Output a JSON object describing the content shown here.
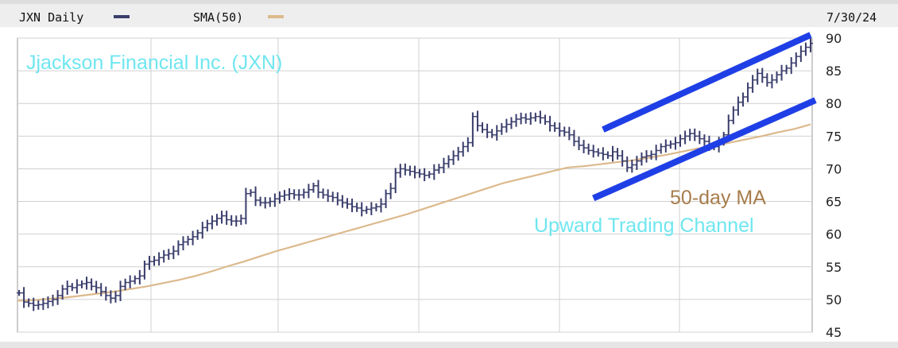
{
  "header": {
    "symbol_label": "JXN Daily",
    "sma_label": "SMA(50)",
    "date": "7/30/24"
  },
  "colors": {
    "price": "#3a3d6b",
    "sma": "#dcb98c",
    "channel": "#1f3fe6",
    "title_text": "#6fe6f0",
    "ma_text": "#a77d4c",
    "grid": "#d0d0d0"
  },
  "annotations": {
    "title": "Jjackson Financial Inc. (JXN)",
    "ma_label": "50-day MA",
    "channel_label": "Upward Trading Channel"
  },
  "chart_data": {
    "type": "line",
    "ylim": [
      45,
      90
    ],
    "yticks": [
      45,
      50,
      55,
      60,
      65,
      70,
      75,
      80,
      85,
      90
    ],
    "grid": true,
    "series": [
      {
        "name": "JXN Daily",
        "style": "ohlc-bars",
        "values": [
          51.0,
          49.6,
          49.4,
          49.1,
          49.2,
          49.4,
          49.7,
          50.0,
          50.6,
          51.6,
          52.0,
          51.8,
          52.2,
          52.4,
          52.6,
          52.0,
          51.8,
          51.2,
          50.6,
          50.2,
          50.6,
          52.0,
          52.6,
          52.8,
          53.2,
          53.6,
          55.4,
          55.8,
          56.0,
          56.4,
          56.8,
          57.0,
          57.4,
          58.4,
          58.8,
          59.2,
          59.6,
          60.2,
          61.0,
          61.6,
          62.0,
          62.4,
          62.8,
          62.2,
          62.0,
          62.0,
          62.4,
          66.2,
          66.4,
          65.2,
          64.8,
          64.8,
          65.0,
          65.4,
          65.8,
          66.0,
          66.2,
          66.0,
          66.0,
          66.4,
          66.8,
          67.4,
          66.4,
          66.0,
          65.8,
          65.6,
          65.2,
          64.8,
          64.6,
          64.2,
          64.0,
          63.6,
          63.8,
          64.0,
          64.2,
          64.6,
          66.2,
          67.0,
          69.4,
          70.0,
          69.8,
          69.6,
          69.4,
          69.2,
          69.0,
          69.2,
          69.8,
          70.2,
          70.8,
          71.4,
          72.0,
          72.6,
          73.4,
          74.0,
          78.0,
          76.6,
          76.0,
          75.6,
          75.2,
          75.8,
          76.4,
          76.8,
          77.2,
          77.6,
          77.8,
          77.6,
          77.8,
          78.0,
          77.8,
          77.2,
          76.6,
          76.2,
          75.8,
          75.6,
          75.2,
          74.2,
          73.6,
          73.2,
          72.8,
          72.6,
          72.4,
          72.2,
          72.0,
          72.6,
          72.0,
          71.2,
          70.2,
          70.6,
          71.2,
          71.8,
          72.0,
          72.2,
          72.8,
          73.4,
          73.6,
          73.8,
          74.0,
          74.6,
          75.0,
          75.4,
          75.0,
          74.6,
          74.2,
          73.6,
          73.4,
          74.0,
          75.2,
          77.4,
          79.0,
          80.2,
          81.0,
          82.4,
          83.6,
          84.6,
          84.0,
          83.2,
          83.6,
          84.4,
          85.0,
          85.4,
          86.2,
          87.2,
          88.0,
          88.6,
          89.2
        ]
      },
      {
        "name": "SMA(50)",
        "style": "line",
        "values": [
          49.8,
          49.9,
          50.1,
          50.3,
          50.6,
          50.9,
          51.2,
          51.6,
          52.0,
          52.5,
          53.0,
          53.6,
          54.3,
          55.1,
          55.8,
          56.6,
          57.4,
          58.1,
          58.8,
          59.5,
          60.2,
          60.9,
          61.6,
          62.3,
          63.0,
          63.8,
          64.6,
          65.4,
          66.2,
          67.0,
          67.8,
          68.4,
          69.0,
          69.6,
          70.2,
          70.4,
          70.7,
          71.0,
          71.3,
          71.7,
          72.1,
          72.6,
          73.1,
          73.5,
          74.0,
          74.5,
          75.0,
          75.6,
          76.1,
          76.8
        ]
      }
    ],
    "channel": {
      "upper": {
        "from": [
          121,
          76.0
        ],
        "to": [
          164,
          90.5
        ]
      },
      "lower": {
        "from": [
          119,
          65.5
        ],
        "to": [
          165,
          80.5
        ]
      }
    }
  }
}
